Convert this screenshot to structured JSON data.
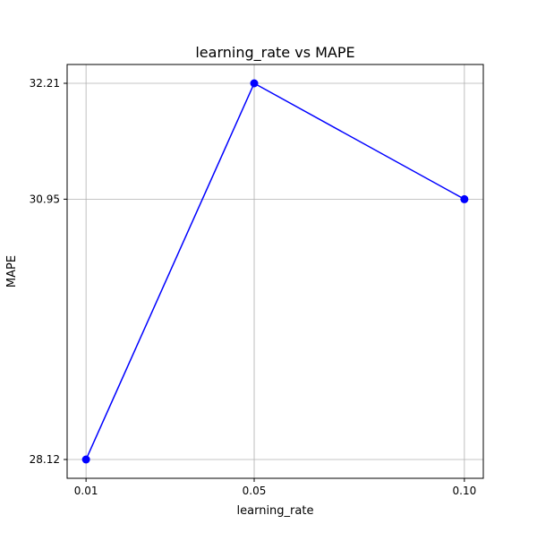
{
  "chart_data": {
    "type": "line",
    "title": "learning_rate vs MAPE",
    "xlabel": "learning_rate",
    "ylabel": "MAPE",
    "x": [
      0.01,
      0.05,
      0.1
    ],
    "series": [
      {
        "values": [
          28.12,
          32.21,
          30.95
        ],
        "color": "#0000ff",
        "marker": "circle"
      }
    ],
    "xticks": [
      0.01,
      0.05,
      0.1
    ],
    "xtick_labels": [
      "0.01",
      "0.05",
      "0.10"
    ],
    "yticks": [
      28.12,
      30.95,
      32.21
    ],
    "ytick_labels": [
      "28.12",
      "30.95",
      "32.21"
    ],
    "xlim": [
      0.0055,
      0.1045
    ],
    "ylim": [
      27.9155,
      32.4145
    ],
    "grid": true
  }
}
